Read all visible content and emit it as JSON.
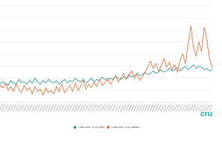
{
  "chart_data": {
    "type": "line",
    "series": [
      {
        "name": "Loan term: 10-yr fixed",
        "color": "#2a9d9f",
        "values": [
          1.5,
          1.7,
          1.6,
          1.4,
          1.8,
          1.6,
          1.5,
          1.9,
          1.6,
          1.7,
          1.5,
          1.8,
          1.6,
          2.0,
          1.7,
          1.5,
          1.8,
          1.6,
          1.9,
          1.7,
          1.6,
          1.8,
          1.5,
          1.7,
          1.9,
          1.6,
          1.8,
          1.7,
          2.0,
          1.8,
          1.7,
          1.9,
          1.6,
          1.8,
          2.0,
          1.7,
          1.9,
          1.8,
          2.1,
          1.9,
          1.8,
          2.0,
          1.9,
          2.2,
          2.0,
          1.9,
          2.1,
          2.0,
          2.3,
          2.1,
          2.2,
          2.4,
          2.2,
          2.3,
          2.5,
          2.3,
          2.4,
          2.6,
          2.4,
          2.5,
          2.7,
          2.5,
          2.6,
          2.8,
          2.6,
          2.7,
          2.9,
          2.6,
          2.8,
          3.0,
          2.7,
          2.9,
          3.1,
          2.8,
          3.0,
          2.9,
          2.7,
          2.8,
          2.6,
          2.7
        ]
      },
      {
        "name": "Loan term: 5-yr variable",
        "color": "#f07033",
        "values": [
          1.4,
          1.2,
          1.6,
          1.0,
          1.3,
          0.9,
          1.5,
          1.1,
          0.8,
          1.4,
          1.0,
          1.2,
          0.7,
          1.3,
          0.9,
          1.1,
          0.6,
          1.2,
          0.8,
          1.0,
          0.7,
          1.3,
          0.9,
          1.5,
          0.8,
          1.1,
          1.4,
          0.9,
          1.6,
          1.0,
          1.3,
          1.8,
          1.1,
          1.5,
          1.2,
          1.7,
          1.3,
          1.9,
          1.4,
          1.6,
          2.0,
          1.5,
          1.8,
          2.2,
          1.7,
          2.0,
          2.4,
          1.9,
          2.2,
          2.6,
          2.0,
          2.3,
          1.8,
          2.1,
          2.5,
          2.9,
          3.4,
          2.8,
          3.2,
          2.6,
          3.0,
          3.6,
          2.9,
          3.3,
          2.7,
          3.1,
          2.5,
          3.5,
          4.0,
          3.2,
          4.8,
          6.3,
          4.5,
          3.8,
          5.0,
          4.2,
          6.2,
          5.1,
          3.6,
          2.8
        ]
      }
    ],
    "ylim": [
      0,
      8
    ],
    "yticks": [
      1,
      2,
      3,
      4,
      5,
      6,
      7,
      8
    ],
    "grid": true
  },
  "logo": "cru"
}
